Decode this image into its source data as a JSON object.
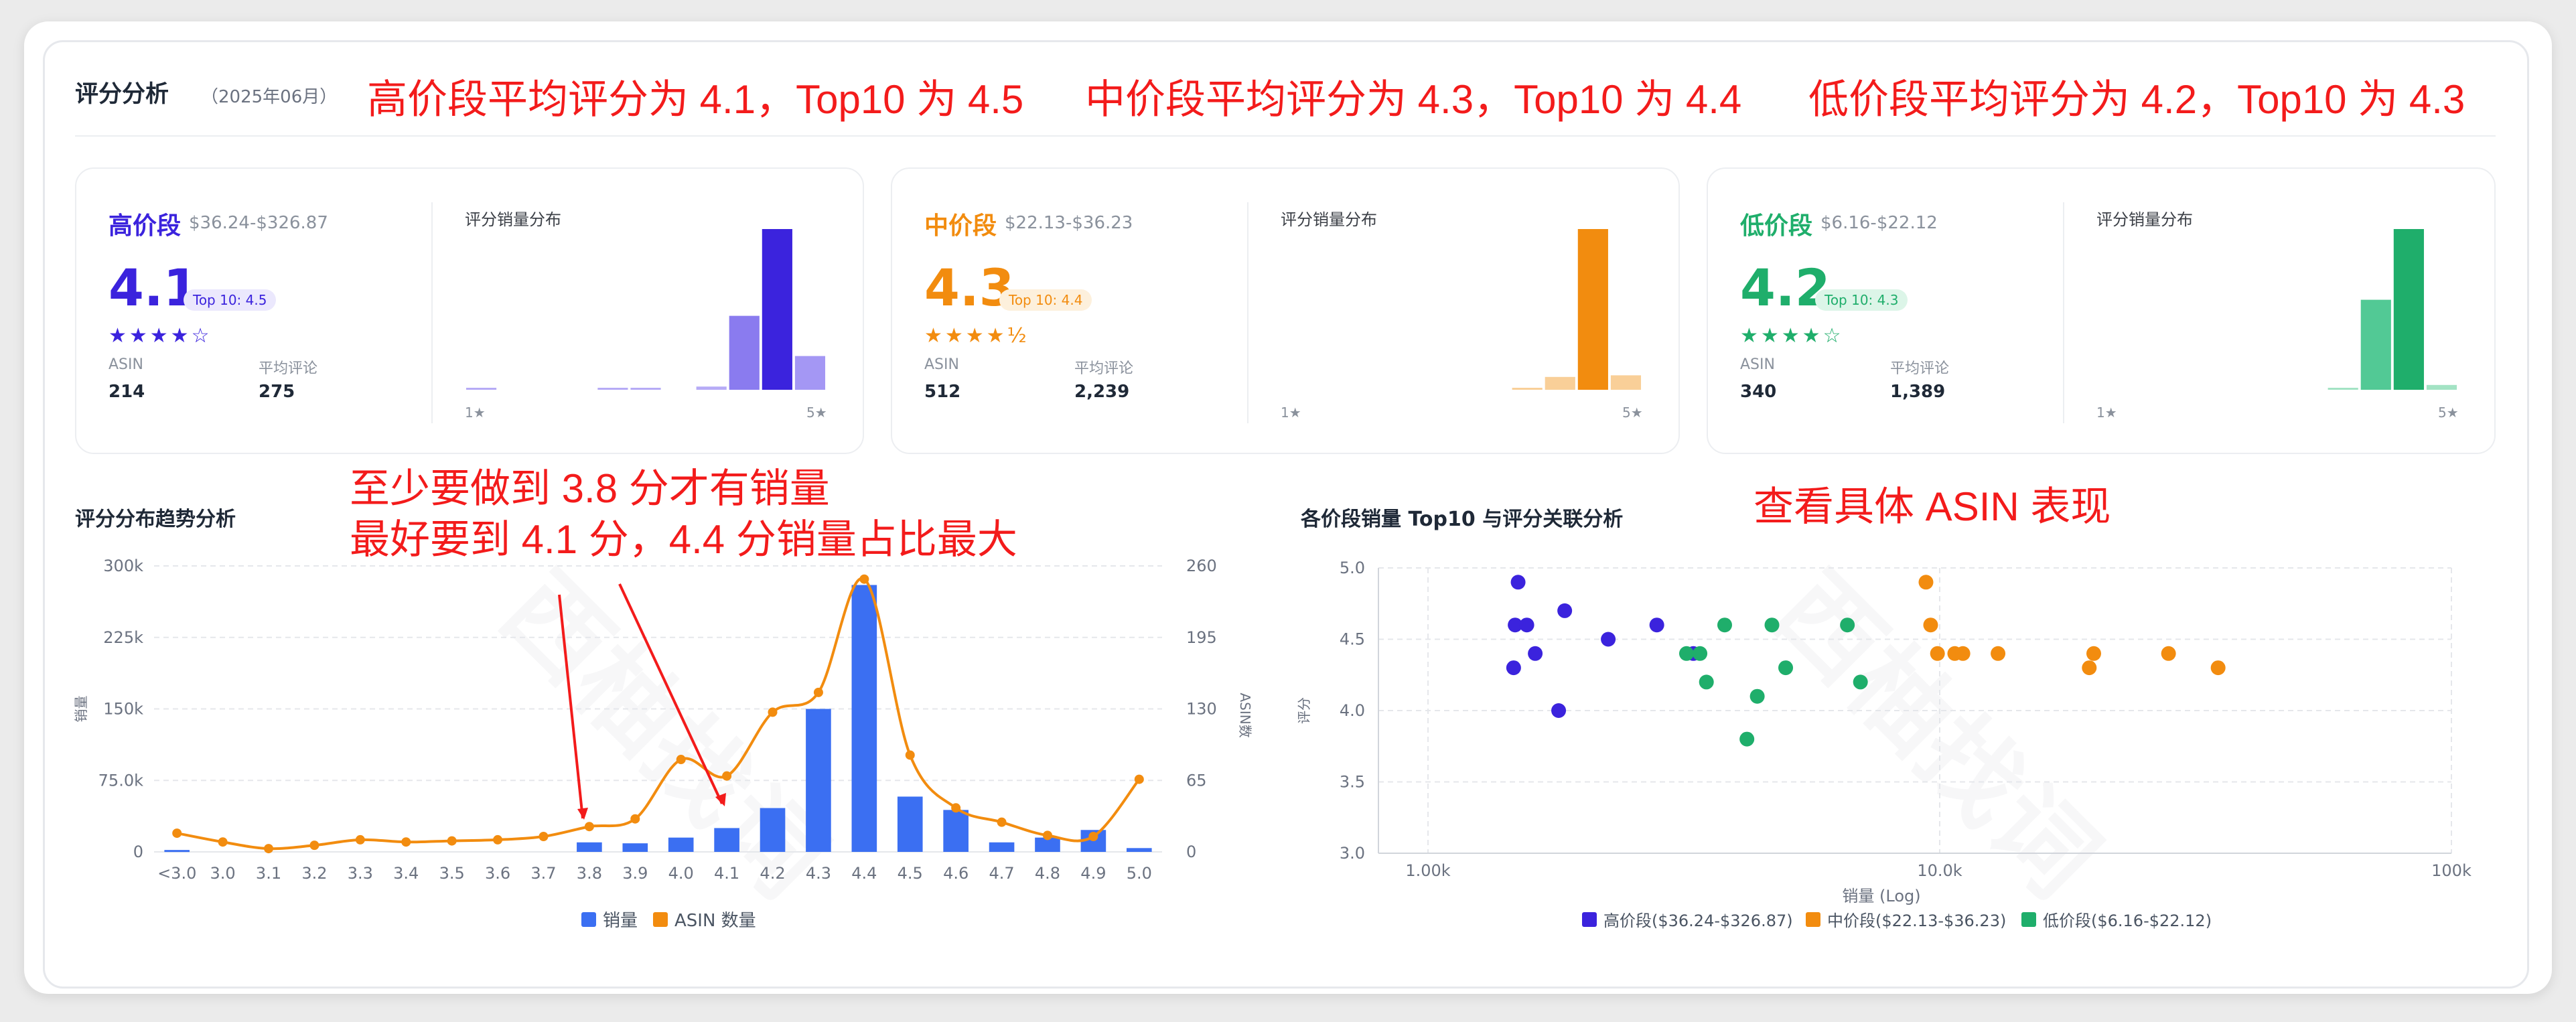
{
  "header": {
    "title": "评分分析",
    "date": "（2025年06月）",
    "annotation_high": "高价段平均评分为 4.1，Top10 为 4.5",
    "annotation_mid": "中价段平均评分为 4.3，Top10 为 4.4",
    "annotation_low": "低价段平均评分为 4.2，Top10 为 4.3"
  },
  "cards": [
    {
      "tier": "高价段",
      "range": "$36.24-$326.87",
      "avg": "4.1",
      "top10": "Top 10: 4.5",
      "stars": "★★★★☆",
      "asin_label": "ASIN",
      "asin": "214",
      "reviews_label": "平均评论",
      "reviews": "275",
      "dist_title": "评分销量分布",
      "axis_left": "1★",
      "axis_right": "5★",
      "color": "#3b23dd",
      "pill_bg": "#ebe8fd",
      "dist": [
        0.01,
        0,
        0,
        0,
        0.01,
        0.01,
        0,
        0.02,
        0.46,
        1.0,
        0.21
      ],
      "bar_colors": [
        "#b6abf6",
        "#b6abf6",
        "#b6abf6",
        "#b6abf6",
        "#b6abf6",
        "#b6abf6",
        "#b6abf6",
        "#b6abf6",
        "#8a7bef",
        "#3b23dd",
        "#a497f4"
      ]
    },
    {
      "tier": "中价段",
      "range": "$22.13-$36.23",
      "avg": "4.3",
      "top10": "Top 10: 4.4",
      "stars": "★★★★½",
      "asin_label": "ASIN",
      "asin": "512",
      "reviews_label": "平均评论",
      "reviews": "2,239",
      "dist_title": "评分销量分布",
      "axis_left": "1★",
      "axis_right": "5★",
      "color": "#f28c0f",
      "pill_bg": "#fdf0dc",
      "dist": [
        0,
        0,
        0,
        0,
        0,
        0,
        0,
        0.01,
        0.08,
        1.0,
        0.09
      ],
      "bar_colors": [
        "#f9cf98",
        "#f9cf98",
        "#f9cf98",
        "#f9cf98",
        "#f9cf98",
        "#f9cf98",
        "#f9cf98",
        "#f9cf98",
        "#f9cf98",
        "#f28c0f",
        "#f9cf98"
      ]
    },
    {
      "tier": "低价段",
      "range": "$6.16-$22.12",
      "avg": "4.2",
      "top10": "Top 10: 4.3",
      "stars": "★★★★☆",
      "asin_label": "ASIN",
      "asin": "340",
      "reviews_label": "平均评论",
      "reviews": "1,389",
      "dist_title": "评分销量分布",
      "axis_left": "1★",
      "axis_right": "5★",
      "color": "#1fae6b",
      "pill_bg": "#dcf5e8",
      "dist": [
        0,
        0,
        0,
        0,
        0,
        0,
        0,
        0.01,
        0.56,
        1.0,
        0.03
      ],
      "bar_colors": [
        "#a3e3c4",
        "#a3e3c4",
        "#a3e3c4",
        "#a3e3c4",
        "#a3e3c4",
        "#a3e3c4",
        "#a3e3c4",
        "#a3e3c4",
        "#52c995",
        "#1fae6b",
        "#a3e3c4"
      ]
    }
  ],
  "trend": {
    "title": "评分分布趋势分析",
    "annotation_line1": "至少要做到 3.8 分才有销量",
    "annotation_line2": "最好要到 4.1 分，4.4 分销量占比最大"
  },
  "scatter": {
    "title": "各价段销量 Top10 与评分关联分析",
    "annotation": "查看具体 ASIN 表现"
  },
  "watermark": "西柚找词",
  "chart_data": [
    {
      "type": "bar",
      "title": "评分分布趋势分析",
      "categories": [
        "<3.0",
        "3.0",
        "3.1",
        "3.2",
        "3.3",
        "3.4",
        "3.5",
        "3.6",
        "3.7",
        "3.8",
        "3.9",
        "4.0",
        "4.1",
        "4.2",
        "4.3",
        "4.4",
        "4.5",
        "4.6",
        "4.7",
        "4.8",
        "4.9",
        "5.0"
      ],
      "series": [
        {
          "name": "销量",
          "type": "bar",
          "axis": "left",
          "color": "#3b6ff2",
          "values": [
            2000,
            0,
            0,
            0,
            0,
            0,
            0,
            0,
            0,
            10000,
            9000,
            15000,
            25000,
            46000,
            150000,
            280000,
            58000,
            44000,
            10000,
            15000,
            23000,
            4000
          ]
        },
        {
          "name": "ASIN 数量",
          "type": "line",
          "axis": "right",
          "color": "#f28c0f",
          "values": [
            17,
            9,
            3,
            6,
            11,
            9,
            10,
            11,
            14,
            23,
            30,
            84,
            69,
            127,
            145,
            248,
            88,
            40,
            27,
            15,
            14,
            66
          ]
        }
      ],
      "ylabel": "销量",
      "y2label": "ASIN数",
      "ylim": [
        0,
        300000
      ],
      "yticks": [
        "0",
        "75.0k",
        "150k",
        "225k",
        "300k"
      ],
      "y2lim": [
        0,
        260
      ],
      "y2ticks": [
        "0",
        "65",
        "130",
        "195",
        "260"
      ],
      "legend": "bottom",
      "grid": true
    },
    {
      "type": "scatter",
      "title": "各价段销量 Top10 与评分关联分析",
      "xlabel": "销量 (Log)",
      "ylabel": "评分",
      "xscale": "log",
      "xlim": [
        800,
        100000
      ],
      "xticks": [
        "1.00k",
        "10.0k",
        "100k"
      ],
      "ylim": [
        3.0,
        5.0
      ],
      "yticks": [
        "3.0",
        "3.5",
        "4.0",
        "4.5",
        "5.0"
      ],
      "legend": "bottom",
      "grid": true,
      "series": [
        {
          "name": "高价段($36.24-$326.87)",
          "color": "#3b23dd",
          "points": [
            [
              1500,
              4.9
            ],
            [
              1480,
              4.6
            ],
            [
              1560,
              4.6
            ],
            [
              1620,
              4.4
            ],
            [
              1470,
              4.3
            ],
            [
              1850,
              4.7
            ],
            [
              2250,
              4.5
            ],
            [
              1800,
              4.0
            ],
            [
              2800,
              4.6
            ],
            [
              3300,
              4.4
            ]
          ]
        },
        {
          "name": "中价段($22.13-$36.23)",
          "color": "#f28c0f",
          "points": [
            [
              9400,
              4.9
            ],
            [
              9600,
              4.6
            ],
            [
              9900,
              4.4
            ],
            [
              10700,
              4.4
            ],
            [
              11100,
              4.4
            ],
            [
              13000,
              4.4
            ],
            [
              19600,
              4.3
            ],
            [
              20000,
              4.4
            ],
            [
              28000,
              4.4
            ],
            [
              35000,
              4.3
            ]
          ]
        },
        {
          "name": "低价段($6.16-$22.12)",
          "color": "#1fae6b",
          "points": [
            [
              3200,
              4.4
            ],
            [
              3400,
              4.4
            ],
            [
              3800,
              4.6
            ],
            [
              3500,
              4.2
            ],
            [
              4400,
              4.1
            ],
            [
              4700,
              4.6
            ],
            [
              5000,
              4.3
            ],
            [
              6600,
              4.6
            ],
            [
              7000,
              4.2
            ],
            [
              4200,
              3.8
            ]
          ]
        }
      ]
    }
  ]
}
